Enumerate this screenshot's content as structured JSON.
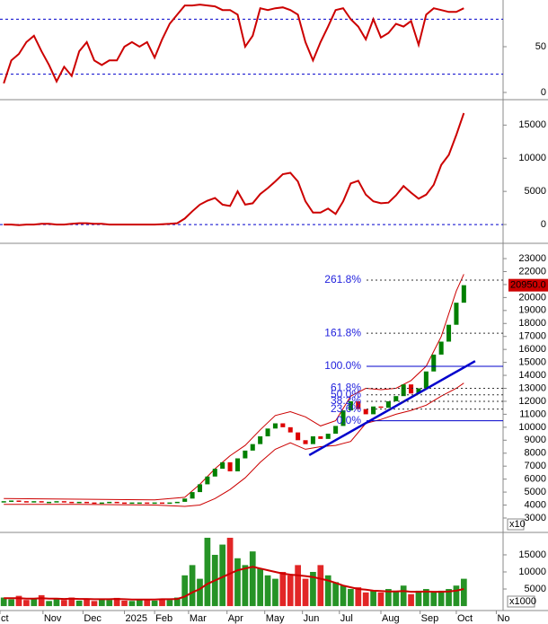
{
  "chart_data": [
    {
      "type": "line",
      "xlim": [
        -0.5,
        66.2
      ],
      "ylim": [
        -6.9,
        101
      ],
      "yticks": [
        50,
        0
      ],
      "levels": [
        80,
        20
      ],
      "level_color": "#0000cc",
      "series": [
        {
          "color": "#cc0000",
          "values": [
            10,
            35,
            42,
            55,
            62,
            45,
            30,
            12,
            28,
            18,
            45,
            55,
            35,
            30,
            35,
            35,
            50,
            55,
            50,
            55,
            38,
            58,
            75,
            85,
            95,
            95,
            96,
            95,
            94,
            90,
            90,
            85,
            50,
            62,
            92,
            90,
            92,
            93,
            90,
            85,
            55,
            35,
            55,
            72,
            90,
            92,
            80,
            72,
            58,
            80,
            60,
            65,
            75,
            72,
            78,
            52,
            85,
            92,
            90,
            88,
            88,
            92
          ]
        }
      ]
    },
    {
      "type": "line",
      "xlim": [
        -0.5,
        66.2
      ],
      "ylim": [
        -2700,
        18700
      ],
      "yticks": [
        15000,
        10000,
        5000,
        0
      ],
      "levels": [
        0
      ],
      "level_color": "#0000cc",
      "series": [
        {
          "color": "#cc0000",
          "values": [
            0,
            0,
            -100,
            0,
            0,
            100,
            100,
            0,
            0,
            100,
            200,
            200,
            100,
            100,
            0,
            0,
            0,
            0,
            0,
            0,
            0,
            50,
            100,
            200,
            900,
            2000,
            3000,
            3600,
            4000,
            3000,
            2800,
            5000,
            3000,
            3200,
            4600,
            5500,
            6500,
            7600,
            7800,
            6500,
            3500,
            1800,
            1800,
            2400,
            1600,
            3500,
            6200,
            6600,
            4500,
            3500,
            3200,
            3300,
            4400,
            5800,
            4800,
            3900,
            4500,
            6000,
            9000,
            10500,
            13500,
            16800
          ]
        }
      ]
    },
    {
      "type": "candlestick",
      "xlim": [
        -0.5,
        66.2
      ],
      "ylim": [
        1960,
        24110
      ],
      "yticks": [
        23000,
        22000,
        21000,
        20000,
        19000,
        18000,
        17000,
        16000,
        15000,
        14000,
        13000,
        12000,
        11000,
        10000,
        9000,
        8000,
        7000,
        6000,
        5000,
        4000,
        3000
      ],
      "up_color": "#008000",
      "down_color": "#dd0000",
      "values": [
        4300,
        4350,
        4300,
        4250,
        4300,
        4200,
        4250,
        4300,
        4250,
        4200,
        4250,
        4200,
        4150,
        4200,
        4250,
        4200,
        4150,
        4200,
        4200,
        4150,
        4200,
        4150,
        4200,
        4250,
        4500,
        5000,
        5600,
        6200,
        6800,
        7300,
        6600,
        7600,
        8200,
        8700,
        9300,
        9900,
        10300,
        10000,
        9600,
        9000,
        8700,
        9300,
        9100,
        9500,
        10100,
        11300,
        12000,
        11400,
        11000,
        11600,
        11500,
        12000,
        12400,
        13300,
        12600,
        13000,
        14300,
        15600,
        16600,
        17900,
        19600,
        20950
      ],
      "bands": [
        {
          "color": "#cc0000",
          "x": [
            0,
            10,
            20,
            24,
            26,
            28,
            30,
            32,
            34,
            36,
            38,
            40,
            42,
            44,
            46,
            48,
            50,
            52,
            54,
            56,
            58,
            60,
            61
          ],
          "values": [
            4500,
            4450,
            4400,
            4600,
            5600,
            6800,
            7800,
            8600,
            9800,
            10900,
            11200,
            10800,
            10100,
            10500,
            12400,
            13000,
            12900,
            13000,
            13600,
            14700,
            17000,
            20500,
            21800
          ]
        },
        {
          "color": "#cc0000",
          "x": [
            0,
            10,
            20,
            24,
            26,
            28,
            30,
            32,
            34,
            36,
            38,
            40,
            42,
            44,
            46,
            48,
            50,
            52,
            54,
            56,
            58,
            60,
            61
          ],
          "values": [
            4050,
            4050,
            4000,
            3900,
            4000,
            4500,
            5200,
            6100,
            7300,
            8300,
            8800,
            8300,
            8500,
            8600,
            8900,
            10300,
            10600,
            11000,
            11300,
            11700,
            12400,
            13000,
            13400
          ]
        }
      ],
      "trendline": {
        "color": "#0000cc",
        "x": [
          40.5,
          62.5
        ],
        "values": [
          7850,
          15100
        ]
      },
      "fib_levels": [
        {
          "label": "261.8%",
          "value": 21340,
          "style": "dashed"
        },
        {
          "label": "161.8%",
          "value": 17250,
          "style": "dashed"
        },
        {
          "label": "100.0%",
          "value": 14700,
          "style": "solid"
        },
        {
          "label": "61.8%",
          "value": 13000,
          "style": "dashed"
        },
        {
          "label": "50.0%",
          "value": 12500,
          "style": "dashed"
        },
        {
          "label": "38.2%",
          "value": 12000,
          "style": "dashed"
        },
        {
          "label": "23.6%",
          "value": 11400,
          "style": "dashed"
        },
        {
          "label": "0.0%",
          "value": 10500,
          "style": "solid"
        }
      ],
      "last_price": {
        "value": 20950,
        "label": "20950.0"
      },
      "unit_label": "x10"
    },
    {
      "type": "bar",
      "xlim": [
        -0.5,
        66.2
      ],
      "ylim": [
        -1300,
        21300
      ],
      "yticks": [
        15000,
        10000,
        5000
      ],
      "color": "#008000",
      "values": [
        2500,
        2000,
        3000,
        1800,
        2200,
        3200,
        1500,
        2000,
        1800,
        2500,
        1600,
        2000,
        1500,
        2200,
        1800,
        2400,
        1600,
        1500,
        1800,
        2000,
        1600,
        2200,
        1800,
        2500,
        9000,
        12000,
        8000,
        20000,
        15000,
        18000,
        20000,
        14000,
        12000,
        16000,
        11000,
        9000,
        8000,
        10000,
        9000,
        12000,
        8000,
        10000,
        12000,
        9000,
        7000,
        6000,
        5000,
        5500,
        4000,
        4500,
        4000,
        5000,
        4500,
        6000,
        3500,
        4500,
        5000,
        4000,
        4500,
        5000,
        6000,
        8000
      ],
      "ma": {
        "color": "#cc0000",
        "values": [
          2300,
          2300,
          2300,
          2200,
          2200,
          2300,
          2200,
          2200,
          2100,
          2200,
          2100,
          2100,
          2000,
          2000,
          2000,
          2100,
          2000,
          1900,
          1900,
          1900,
          1900,
          2000,
          2000,
          2100,
          2800,
          4000,
          5000,
          6500,
          7500,
          8500,
          9500,
          10500,
          11000,
          11500,
          11000,
          10500,
          10000,
          9500,
          9200,
          9000,
          8800,
          8500,
          8000,
          7500,
          6800,
          6000,
          5500,
          5000,
          4800,
          4500,
          4400,
          4300,
          4300,
          4400,
          4200,
          4200,
          4300,
          4200,
          4200,
          4300,
          4500,
          5000
        ]
      },
      "unit_label": "x1000",
      "xticks": [
        {
          "value": -0.5,
          "label": "ct"
        },
        {
          "value": 5.2,
          "label": "Nov"
        },
        {
          "value": 10.5,
          "label": "Dec"
        },
        {
          "value": 16,
          "label": "2025"
        },
        {
          "value": 20,
          "label": "Feb"
        },
        {
          "value": 24.5,
          "label": "Mar"
        },
        {
          "value": 29.6,
          "label": "Apr"
        },
        {
          "value": 34.6,
          "label": "May"
        },
        {
          "value": 39.6,
          "label": "Jun"
        },
        {
          "value": 44.5,
          "label": "Jul"
        },
        {
          "value": 50,
          "label": "Aug"
        },
        {
          "value": 55.2,
          "label": "Sep"
        },
        {
          "value": 60,
          "label": "Oct"
        },
        {
          "value": 65.3,
          "label": "No"
        }
      ]
    }
  ]
}
